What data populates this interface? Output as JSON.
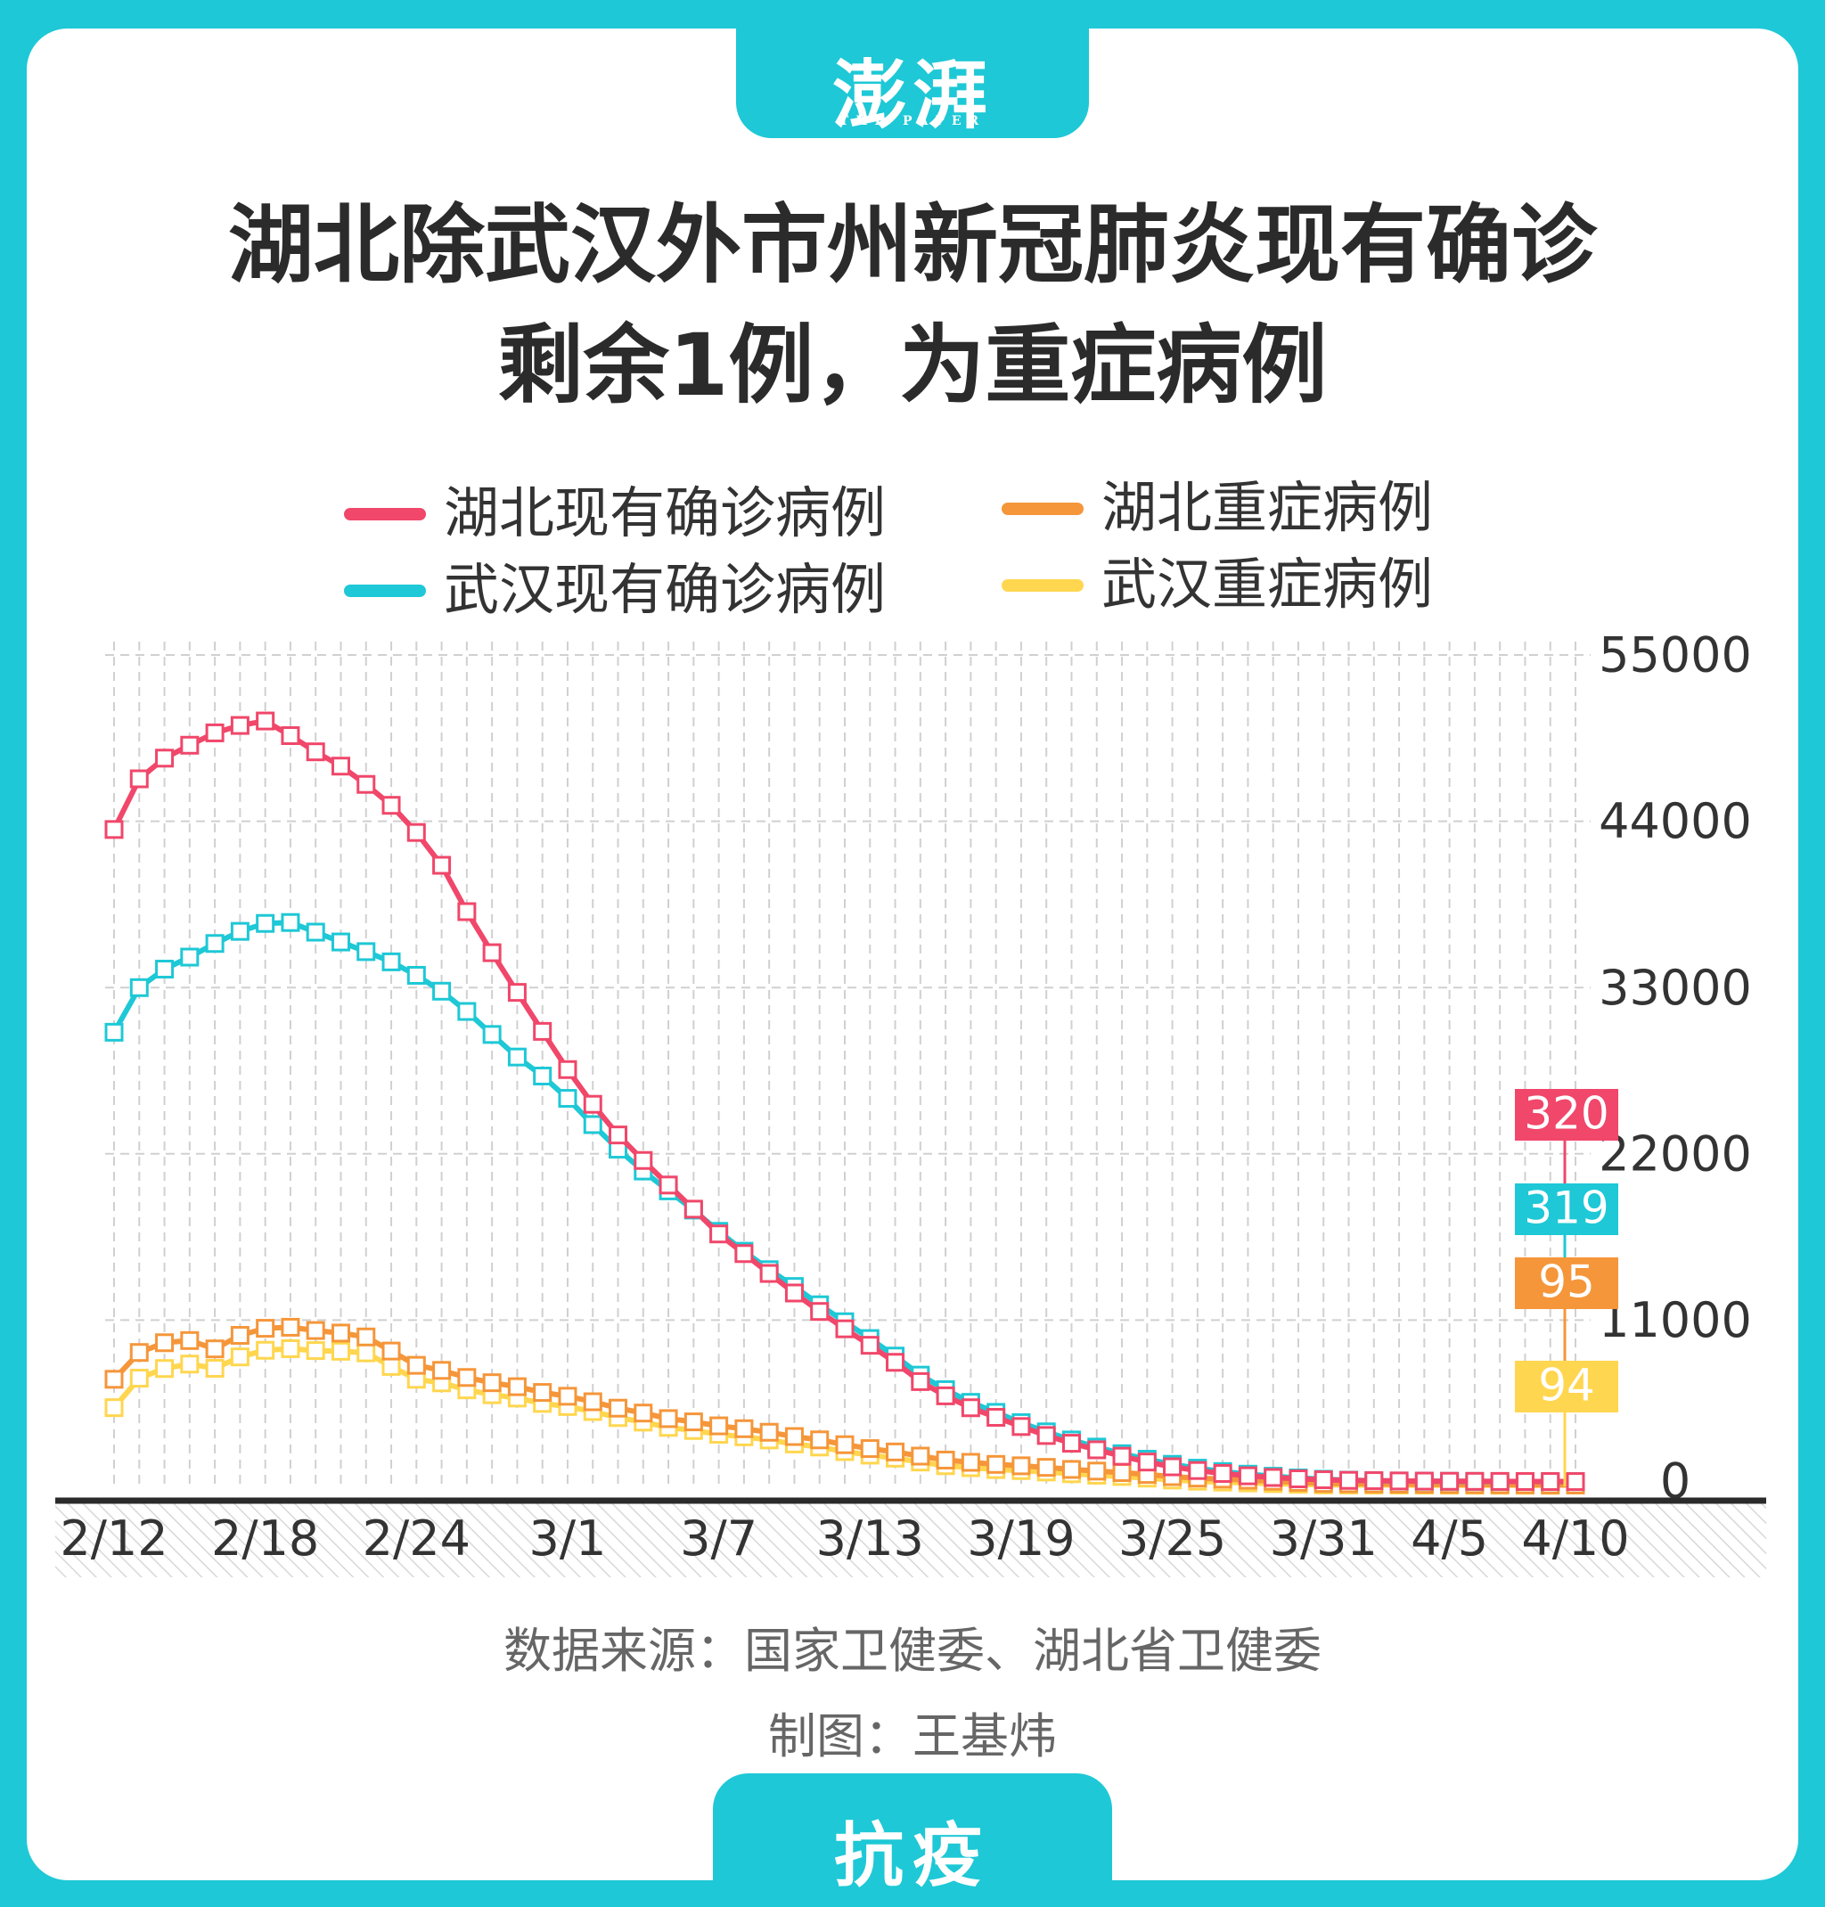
{
  "header": {
    "logo_text": "澎湃",
    "logo_subtext": "THE PAPER",
    "title_line1": "湖北除武汉外市州新冠肺炎现有确诊",
    "title_line2": "剩余1例，为重症病例"
  },
  "footer": {
    "source": "数据来源：国家卫健委、湖北省卫健委",
    "credit": "制图：王基炜",
    "tag": "抗疫"
  },
  "colors": {
    "background": "#1ec8d6",
    "panel": "#ffffff",
    "hubei_confirmed": "#f0476a",
    "wuhan_confirmed": "#1ec8d6",
    "hubei_severe": "#f5963a",
    "wuhan_severe": "#ffd64f"
  },
  "chart_data": {
    "type": "line",
    "title": "湖北除武汉外市州新冠肺炎现有确诊剩余1例，为重症病例",
    "ylim": [
      0,
      55000
    ],
    "y_ticks": [
      0,
      11000,
      22000,
      33000,
      44000,
      55000
    ],
    "y_axis_side": "right",
    "x_tick_labels": [
      "2/12",
      "2/18",
      "2/24",
      "3/1",
      "3/7",
      "3/13",
      "3/19",
      "3/25",
      "3/31",
      "4/5",
      "4/10"
    ],
    "x_tick_index": [
      0,
      6,
      12,
      18,
      24,
      30,
      36,
      42,
      48,
      53,
      58
    ],
    "grid": true,
    "legend_position": "top",
    "x": [
      "2/12",
      "2/13",
      "2/14",
      "2/15",
      "2/16",
      "2/17",
      "2/18",
      "2/19",
      "2/20",
      "2/21",
      "2/22",
      "2/23",
      "2/24",
      "2/25",
      "2/26",
      "2/27",
      "2/28",
      "2/29",
      "3/1",
      "3/2",
      "3/3",
      "3/4",
      "3/5",
      "3/6",
      "3/7",
      "3/8",
      "3/9",
      "3/10",
      "3/11",
      "3/12",
      "3/13",
      "3/14",
      "3/15",
      "3/16",
      "3/17",
      "3/18",
      "3/19",
      "3/20",
      "3/21",
      "3/22",
      "3/23",
      "3/24",
      "3/25",
      "3/26",
      "3/27",
      "3/28",
      "3/29",
      "3/30",
      "3/31",
      "4/1",
      "4/2",
      "4/3",
      "4/4",
      "4/5",
      "4/6",
      "4/7",
      "4/8",
      "4/9",
      "4/10"
    ],
    "series": [
      {
        "name": "湖北现有确诊病例",
        "end_label": "320",
        "values": [
          43455,
          46806,
          48175,
          49030,
          49847,
          50338,
          50633,
          49665,
          48593,
          47647,
          46439,
          45054,
          43258,
          41087,
          38020,
          35305,
          32680,
          30100,
          27573,
          25277,
          23248,
          21561,
          19937,
          18340,
          16700,
          15400,
          14087,
          12794,
          11572,
          10424,
          9335,
          8208,
          6933,
          5991,
          5202,
          4569,
          3960,
          3367,
          2855,
          2420,
          1996,
          1612,
          1294,
          1050,
          856,
          700,
          590,
          500,
          440,
          400,
          380,
          360,
          350,
          340,
          335,
          330,
          325,
          322,
          320
        ]
      },
      {
        "name": "武汉现有确诊病例",
        "end_label": "319",
        "values": [
          30043,
          32994,
          34219,
          35014,
          35914,
          36716,
          37242,
          37302,
          36665,
          36014,
          35376,
          34699,
          33808,
          32758,
          31418,
          29896,
          28404,
          27147,
          25669,
          23934,
          22308,
          20863,
          19549,
          18281,
          16872,
          15556,
          14335,
          13224,
          12013,
          10893,
          9780,
          8620,
          7360,
          6400,
          5560,
          4896,
          4220,
          3608,
          3070,
          2600,
          2163,
          1797,
          1461,
          1205,
          983,
          807,
          672,
          560,
          474,
          410,
          380,
          358,
          345,
          336,
          330,
          326,
          323,
          320,
          319
        ]
      },
      {
        "name": "湖北重症病例",
        "end_label": "95",
        "values": [
          7084,
          8860,
          9504,
          9649,
          9096,
          9992,
          10459,
          10527,
          10312,
          10143,
          9887,
          8953,
          8009,
          7675,
          7205,
          6858,
          6596,
          6215,
          5963,
          5599,
          5174,
          4851,
          4484,
          4269,
          4005,
          3816,
          3581,
          3298,
          3079,
          2758,
          2502,
          2278,
          2003,
          1742,
          1592,
          1456,
          1363,
          1258,
          1123,
          1012,
          913,
          791,
          646,
          550,
          480,
          411,
          342,
          265,
          199,
          180,
          165,
          150,
          140,
          130,
          120,
          115,
          110,
          100,
          95
        ]
      },
      {
        "name": "武汉重症病例",
        "end_label": "94",
        "values": [
          5208,
          7160,
          7798,
          8091,
          7811,
          8566,
          9005,
          9109,
          8984,
          8939,
          8835,
          7935,
          7084,
          6850,
          6387,
          6063,
          5845,
          5488,
          5284,
          4953,
          4553,
          4254,
          3904,
          3698,
          3447,
          3280,
          3074,
          2808,
          2605,
          2303,
          2069,
          1868,
          1612,
          1370,
          1239,
          1112,
          1047,
          952,
          838,
          739,
          655,
          547,
          422,
          343,
          284,
          231,
          184,
          136,
          98,
          91,
          86,
          83,
          80,
          78,
          76,
          74,
          72,
          70,
          94
        ]
      }
    ]
  }
}
